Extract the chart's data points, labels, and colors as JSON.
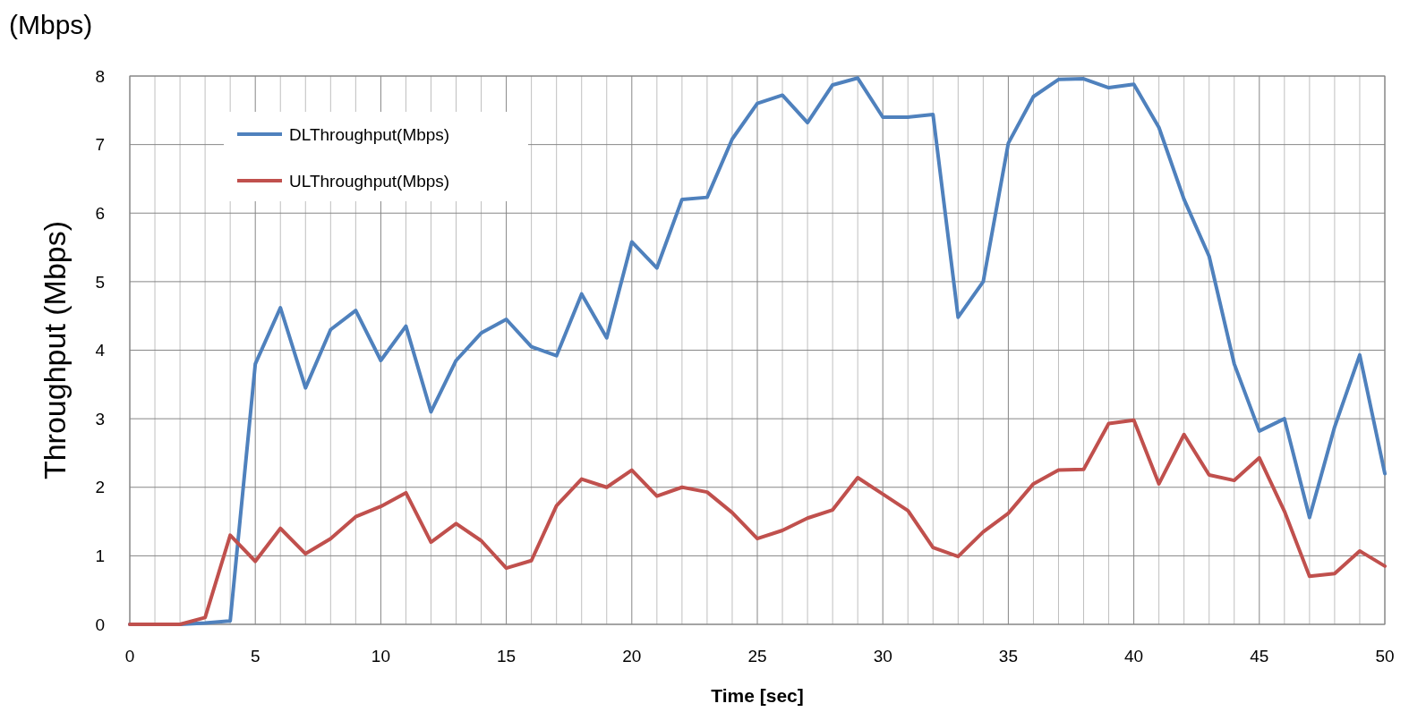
{
  "chart_data": {
    "type": "line",
    "xlabel": "Time [sec]",
    "ylabel": "Throughput (Mbps)",
    "annotations": [
      "(Mbps)"
    ],
    "x": [
      0,
      1,
      2,
      3,
      4,
      5,
      6,
      7,
      8,
      9,
      10,
      11,
      12,
      13,
      14,
      15,
      16,
      17,
      18,
      19,
      20,
      21,
      22,
      23,
      24,
      25,
      26,
      27,
      28,
      29,
      30,
      31,
      32,
      33,
      34,
      35,
      36,
      37,
      38,
      39,
      40,
      41,
      42,
      43,
      44,
      45,
      46,
      47,
      48,
      49,
      50
    ],
    "series": [
      {
        "name": "DLThroughput(Mbps)",
        "color": "#4f81bd",
        "values": [
          0,
          0,
          0,
          0.02,
          0.05,
          3.8,
          4.62,
          3.45,
          4.3,
          4.58,
          3.85,
          4.35,
          3.1,
          3.85,
          4.25,
          4.45,
          4.05,
          3.92,
          4.82,
          4.18,
          5.58,
          5.2,
          6.2,
          6.23,
          7.08,
          7.6,
          7.72,
          7.32,
          7.87,
          7.97,
          7.4,
          7.4,
          7.44,
          4.48,
          5.0,
          7.02,
          7.7,
          7.95,
          7.96,
          7.83,
          7.88,
          7.25,
          6.2,
          5.37,
          3.8,
          2.82,
          3.0,
          1.56,
          2.88,
          3.93,
          2.2
        ]
      },
      {
        "name": "ULThroughput(Mbps)",
        "color": "#c0504d",
        "values": [
          0,
          0,
          0,
          0.1,
          1.3,
          0.92,
          1.4,
          1.03,
          1.25,
          1.57,
          1.72,
          1.92,
          1.2,
          1.47,
          1.22,
          0.82,
          0.93,
          1.73,
          2.12,
          2.0,
          2.25,
          1.87,
          2.0,
          1.93,
          1.63,
          1.25,
          1.37,
          1.55,
          1.67,
          2.14,
          1.9,
          1.66,
          1.12,
          0.99,
          1.35,
          1.62,
          2.05,
          2.25,
          2.26,
          2.93,
          2.98,
          2.05,
          2.77,
          2.18,
          2.1,
          2.43,
          1.65,
          0.7,
          0.74,
          1.07,
          0.85
        ]
      }
    ],
    "xlim": [
      0,
      50
    ],
    "xticks": [
      0,
      5,
      10,
      15,
      20,
      25,
      30,
      35,
      40,
      45,
      50
    ],
    "ylim": [
      0,
      8
    ],
    "yticks": [
      0,
      1,
      2,
      3,
      4,
      5,
      6,
      7,
      8
    ],
    "grid": true,
    "legend": "top left",
    "marker": "none",
    "line_style": "solid"
  }
}
